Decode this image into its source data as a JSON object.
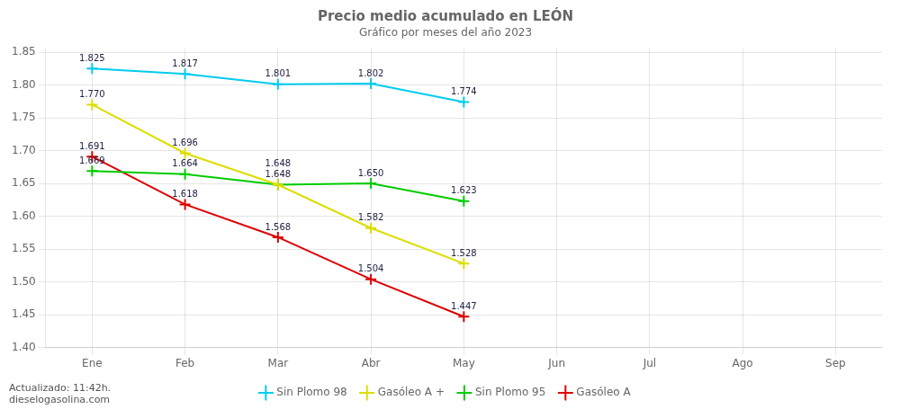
{
  "chart_data": {
    "type": "line",
    "title": "Precio medio acumulado en LEÓN",
    "subtitle": "Gráfico por meses del año 2023",
    "categories": [
      "Ene",
      "Feb",
      "Mar",
      "Abr",
      "May",
      "Jun",
      "Jul",
      "Ago",
      "Sep"
    ],
    "series": [
      {
        "name": "Sin Plomo 98",
        "color": "#00ccee",
        "marker": "+",
        "values": [
          1.825,
          1.817,
          1.801,
          1.802,
          1.774,
          null,
          null,
          null,
          null
        ],
        "value_labels": [
          "1.825",
          "1.817",
          "1.801",
          "1.802",
          "1.774",
          null,
          null,
          null,
          null
        ]
      },
      {
        "name": "Gasóleo A +",
        "color": "#dddd00",
        "marker": "+",
        "values": [
          1.77,
          1.696,
          1.648,
          1.582,
          1.528,
          null,
          null,
          null,
          null
        ],
        "value_labels": [
          "1.770",
          "1.696",
          "1.648",
          "1.582",
          "1.528",
          null,
          null,
          null,
          null
        ]
      },
      {
        "name": "Sin Plomo 95",
        "color": "#00cc00",
        "marker": "+",
        "values": [
          1.669,
          1.664,
          1.648,
          1.65,
          1.623,
          null,
          null,
          null,
          null
        ],
        "value_labels": [
          "1.669",
          "1.664",
          "1.648",
          "1.650",
          "1.623",
          null,
          null,
          null,
          null
        ]
      },
      {
        "name": "Gasóleo A",
        "color": "#dd0000",
        "marker": "+",
        "values": [
          1.691,
          1.618,
          1.568,
          1.504,
          1.447,
          null,
          null,
          null,
          null
        ],
        "value_labels": [
          "1.691",
          "1.618",
          "1.568",
          "1.504",
          "1.447",
          null,
          null,
          null,
          null
        ]
      }
    ],
    "ylim": [
      1.4,
      1.855
    ],
    "yticks": [
      {
        "value": 1.4,
        "label": "1.40"
      },
      1.45,
      {
        "value": 1.5,
        "label": "1.50"
      },
      1.55,
      {
        "value": 1.6,
        "label": "1.60"
      },
      1.65,
      {
        "value": 1.7,
        "label": "1.70"
      },
      1.75,
      {
        "value": 1.8,
        "label": "1.80"
      },
      1.85
    ],
    "grid": true,
    "legend": "bottom",
    "data_labels": true,
    "annotations": [
      "Actualizado: 11:42h.\ndieselogasolina.com"
    ]
  }
}
